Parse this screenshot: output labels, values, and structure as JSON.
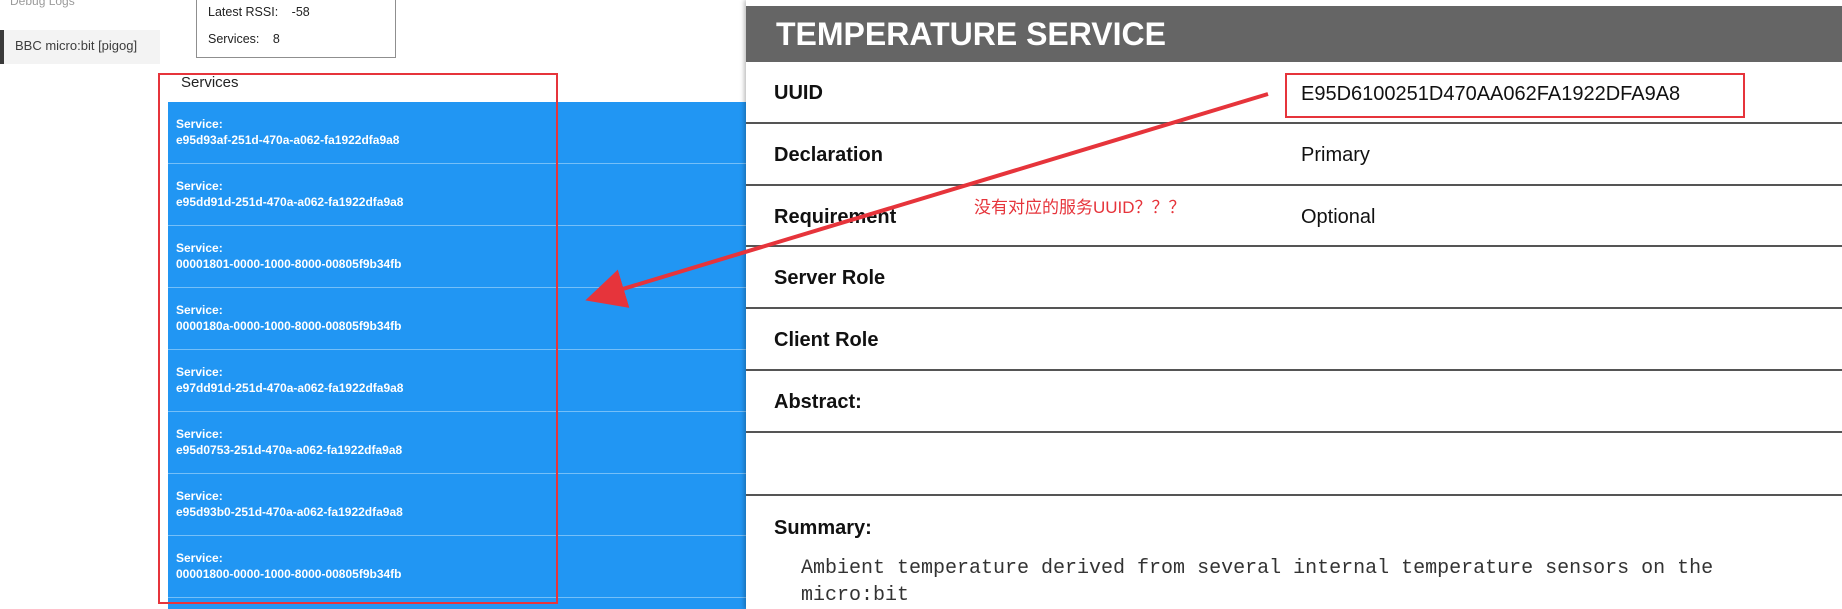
{
  "sidebar": {
    "debug_logs": "Debug Logs",
    "device": "BBC micro:bit [pigog]"
  },
  "info": {
    "rssi_label": "Latest RSSI:",
    "rssi_value": "-58",
    "services_label": "Services:",
    "services_value": "8"
  },
  "services": {
    "title": "Services",
    "items": [
      {
        "label": "Service:",
        "uuid": "e95d93af-251d-470a-a062-fa1922dfa9a8"
      },
      {
        "label": "Service:",
        "uuid": "e95dd91d-251d-470a-a062-fa1922dfa9a8"
      },
      {
        "label": "Service:",
        "uuid": "00001801-0000-1000-8000-00805f9b34fb"
      },
      {
        "label": "Service:",
        "uuid": "0000180a-0000-1000-8000-00805f9b34fb"
      },
      {
        "label": "Service:",
        "uuid": "e97dd91d-251d-470a-a062-fa1922dfa9a8"
      },
      {
        "label": "Service:",
        "uuid": "e95d0753-251d-470a-a062-fa1922dfa9a8"
      },
      {
        "label": "Service:",
        "uuid": "e95d93b0-251d-470a-a062-fa1922dfa9a8"
      },
      {
        "label": "Service:",
        "uuid": "00001800-0000-1000-8000-00805f9b34fb"
      }
    ]
  },
  "doc": {
    "title": "TEMPERATURE SERVICE",
    "uuid_label": "UUID",
    "uuid_value": "E95D6100251D470AA062FA1922DFA9A8",
    "declaration_label": "Declaration",
    "declaration_value": "Primary",
    "requirement_label": "Requirement",
    "requirement_value": "Optional",
    "server_role_label": "Server Role",
    "client_role_label": "Client Role",
    "abstract_label": "Abstract:",
    "summary_label": "Summary:",
    "summary_text": "Ambient temperature derived from several internal temperature sensors on the micro:bit"
  },
  "annotation": {
    "text": "没有对应的服务UUID？？？",
    "color": "#e6343b"
  }
}
